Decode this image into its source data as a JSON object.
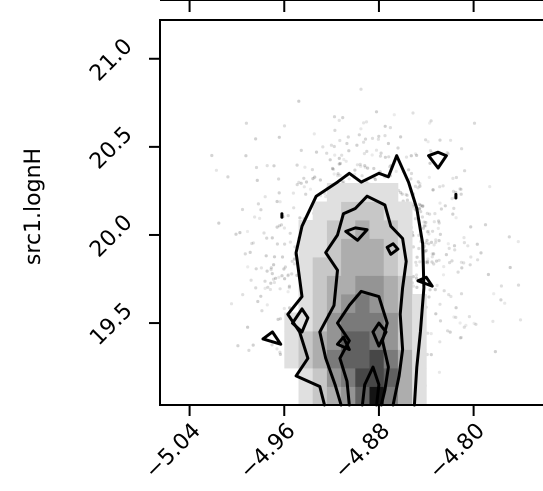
{
  "chart_data": {
    "type": "heatmap",
    "ylabel": "src1.lognH",
    "xlabel": "",
    "xlim": [
      -5.065,
      -4.727
    ],
    "ylim": [
      19.035,
      21.22
    ],
    "x_ticks": [
      -5.04,
      -4.96,
      -4.88,
      -4.8
    ],
    "x_tick_labels": [
      "−5.04",
      "−4.96",
      "−4.88",
      "−4.80"
    ],
    "y_ticks": [
      19.5,
      20.0,
      20.5,
      21.0
    ],
    "y_tick_labels": [
      "19.5",
      "20.0",
      "20.5",
      "21.0"
    ],
    "histogram": {
      "x_bin_edges": [
        -4.96,
        -4.948,
        -4.936,
        -4.924,
        -4.912,
        -4.9,
        -4.888,
        -4.876,
        -4.864,
        -4.852,
        -4.84
      ],
      "y_bin_edges": [
        19.035,
        19.14,
        19.245,
        19.35,
        19.455,
        19.56,
        19.665,
        19.77,
        19.875,
        19.98,
        20.085,
        20.19,
        20.295
      ],
      "counts": [
        [
          0,
          1,
          2,
          3,
          4,
          6,
          9,
          5,
          3,
          1
        ],
        [
          0,
          1,
          2,
          4,
          5,
          7,
          7,
          6,
          3,
          1
        ],
        [
          1,
          2,
          3,
          5,
          6,
          6,
          7,
          5,
          3,
          1
        ],
        [
          1,
          2,
          3,
          4,
          6,
          6,
          5,
          4,
          2,
          1
        ],
        [
          1,
          1,
          2,
          4,
          5,
          5,
          5,
          4,
          2,
          1
        ],
        [
          0,
          1,
          2,
          3,
          4,
          5,
          4,
          3,
          2,
          1
        ],
        [
          0,
          1,
          2,
          3,
          3,
          4,
          4,
          3,
          2,
          0
        ],
        [
          0,
          1,
          2,
          2,
          3,
          3,
          3,
          2,
          1,
          0
        ],
        [
          0,
          1,
          1,
          2,
          3,
          3,
          3,
          2,
          1,
          0
        ],
        [
          0,
          1,
          1,
          2,
          2,
          3,
          2,
          2,
          1,
          0
        ],
        [
          0,
          0,
          1,
          1,
          2,
          2,
          2,
          1,
          1,
          0
        ],
        [
          0,
          0,
          0,
          1,
          1,
          1,
          1,
          1,
          0,
          0
        ]
      ]
    },
    "contours": [
      [
        [
          -4.926,
          19.035
        ],
        [
          -4.93,
          19.14
        ],
        [
          -4.95,
          19.2
        ],
        [
          -4.94,
          19.3
        ],
        [
          -4.947,
          19.45
        ],
        [
          -4.957,
          19.55
        ],
        [
          -4.945,
          19.65
        ],
        [
          -4.95,
          19.9
        ],
        [
          -4.945,
          20.05
        ],
        [
          -4.933,
          20.22
        ],
        [
          -4.915,
          20.3
        ],
        [
          -4.905,
          20.35
        ],
        [
          -4.895,
          20.3
        ],
        [
          -4.88,
          20.35
        ],
        [
          -4.872,
          20.33
        ],
        [
          -4.865,
          20.45
        ],
        [
          -4.855,
          20.3
        ],
        [
          -4.848,
          20.15
        ],
        [
          -4.843,
          19.95
        ],
        [
          -4.842,
          19.7
        ],
        [
          -4.845,
          19.45
        ],
        [
          -4.848,
          19.25
        ],
        [
          -4.85,
          19.035
        ]
      ],
      [
        [
          -4.912,
          19.035
        ],
        [
          -4.917,
          19.15
        ],
        [
          -4.925,
          19.3
        ],
        [
          -4.93,
          19.45
        ],
        [
          -4.918,
          19.6
        ],
        [
          -4.915,
          19.8
        ],
        [
          -4.925,
          19.9
        ],
        [
          -4.915,
          20.0
        ],
        [
          -4.91,
          20.12
        ],
        [
          -4.9,
          20.15
        ],
        [
          -4.89,
          20.22
        ],
        [
          -4.875,
          20.17
        ],
        [
          -4.87,
          20.05
        ],
        [
          -4.86,
          19.98
        ],
        [
          -4.857,
          19.85
        ],
        [
          -4.86,
          19.7
        ],
        [
          -4.862,
          19.55
        ],
        [
          -4.86,
          19.35
        ],
        [
          -4.863,
          19.2
        ],
        [
          -4.868,
          19.035
        ]
      ],
      [
        [
          -4.905,
          19.035
        ],
        [
          -4.907,
          19.17
        ],
        [
          -4.913,
          19.3
        ],
        [
          -4.905,
          19.4
        ],
        [
          -4.915,
          19.5
        ],
        [
          -4.905,
          19.6
        ],
        [
          -4.895,
          19.68
        ],
        [
          -4.88,
          19.65
        ],
        [
          -4.873,
          19.5
        ],
        [
          -4.877,
          19.4
        ],
        [
          -4.872,
          19.25
        ],
        [
          -4.875,
          19.12
        ],
        [
          -4.878,
          19.035
        ]
      ],
      [
        [
          -4.894,
          19.035
        ],
        [
          -4.892,
          19.15
        ],
        [
          -4.885,
          19.25
        ],
        [
          -4.88,
          19.15
        ],
        [
          -4.882,
          19.035
        ]
      ],
      [
        [
          -4.908,
          20.02
        ],
        [
          -4.9,
          20.04
        ],
        [
          -4.89,
          20.03
        ],
        [
          -4.898,
          19.97
        ],
        [
          -4.908,
          20.02
        ]
      ],
      [
        [
          -4.885,
          19.45
        ],
        [
          -4.88,
          19.5
        ],
        [
          -4.874,
          19.45
        ],
        [
          -4.88,
          19.37
        ],
        [
          -4.885,
          19.45
        ]
      ],
      [
        [
          -4.915,
          19.38
        ],
        [
          -4.91,
          19.42
        ],
        [
          -4.905,
          19.35
        ],
        [
          -4.915,
          19.38
        ]
      ],
      [
        [
          -4.873,
          19.93
        ],
        [
          -4.868,
          19.95
        ],
        [
          -4.864,
          19.92
        ],
        [
          -4.87,
          19.89
        ],
        [
          -4.873,
          19.93
        ]
      ],
      [
        [
          -4.945,
          19.58
        ],
        [
          -4.94,
          19.53
        ],
        [
          -4.945,
          19.45
        ],
        [
          -4.953,
          19.5
        ],
        [
          -4.945,
          19.58
        ]
      ],
      [
        [
          -4.978,
          19.41
        ],
        [
          -4.97,
          19.45
        ],
        [
          -4.963,
          19.38
        ],
        [
          -4.978,
          19.41
        ]
      ],
      [
        [
          -4.847,
          19.74
        ],
        [
          -4.84,
          19.76
        ],
        [
          -4.835,
          19.71
        ],
        [
          -4.847,
          19.74
        ]
      ],
      [
        [
          -4.838,
          20.45
        ],
        [
          -4.83,
          20.47
        ],
        [
          -4.823,
          20.45
        ],
        [
          -4.83,
          20.38
        ],
        [
          -4.838,
          20.45
        ]
      ],
      [
        [
          -4.815,
          20.23
        ],
        [
          -4.815,
          20.21
        ]
      ],
      [
        [
          -4.962,
          20.12
        ],
        [
          -4.962,
          20.1
        ]
      ]
    ]
  }
}
